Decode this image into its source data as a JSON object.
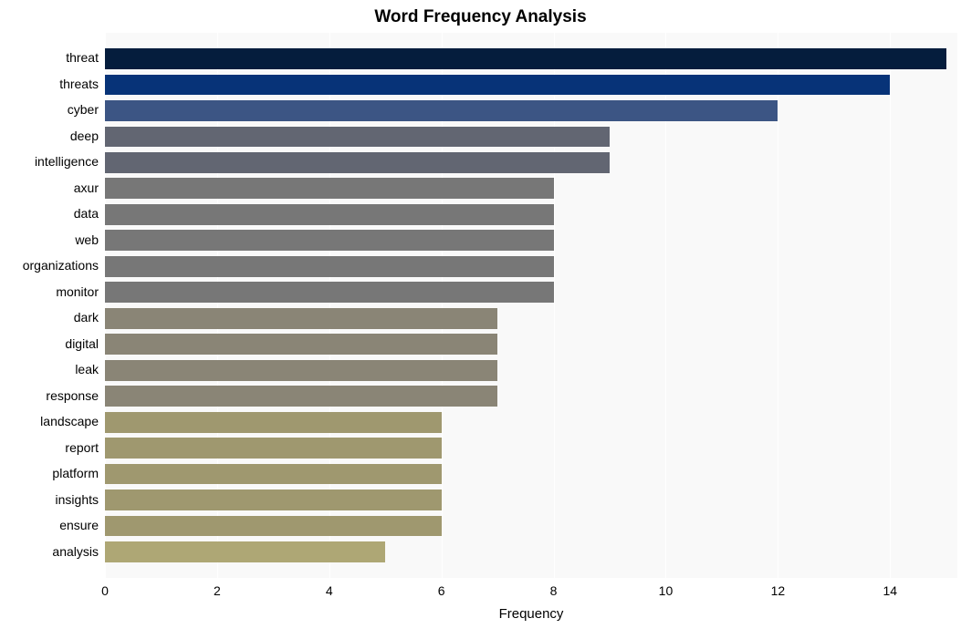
{
  "chart": {
    "type": "bar-horizontal",
    "title": "Word Frequency Analysis",
    "title_fontsize": 19,
    "title_fontweight": "bold",
    "background_color": "#ffffff",
    "plot_background_color": "#f9f9f9",
    "grid_color": "#ffffff",
    "xlabel": "Frequency",
    "label_fontsize": 15,
    "tick_fontsize": 14,
    "xlim": [
      0,
      15.2
    ],
    "xtick_step": 2,
    "xticks": [
      0,
      2,
      4,
      6,
      8,
      10,
      12,
      14
    ],
    "bar_gap_ratio": 0.2,
    "categories": [
      "threat",
      "threats",
      "cyber",
      "deep",
      "intelligence",
      "axur",
      "data",
      "web",
      "organizations",
      "monitor",
      "dark",
      "digital",
      "leak",
      "response",
      "landscape",
      "report",
      "platform",
      "insights",
      "ensure",
      "analysis"
    ],
    "values": [
      15,
      14,
      12,
      9,
      9,
      8,
      8,
      8,
      8,
      8,
      7,
      7,
      7,
      7,
      6,
      6,
      6,
      6,
      6,
      5
    ],
    "bar_colors": [
      "#051d3d",
      "#073378",
      "#3c5584",
      "#626672",
      "#626672",
      "#777777",
      "#777777",
      "#777777",
      "#777777",
      "#777777",
      "#8a8576",
      "#8a8576",
      "#8a8576",
      "#8a8576",
      "#9f986f",
      "#9f986f",
      "#9f986f",
      "#9f986f",
      "#9f986f",
      "#aea775"
    ]
  }
}
